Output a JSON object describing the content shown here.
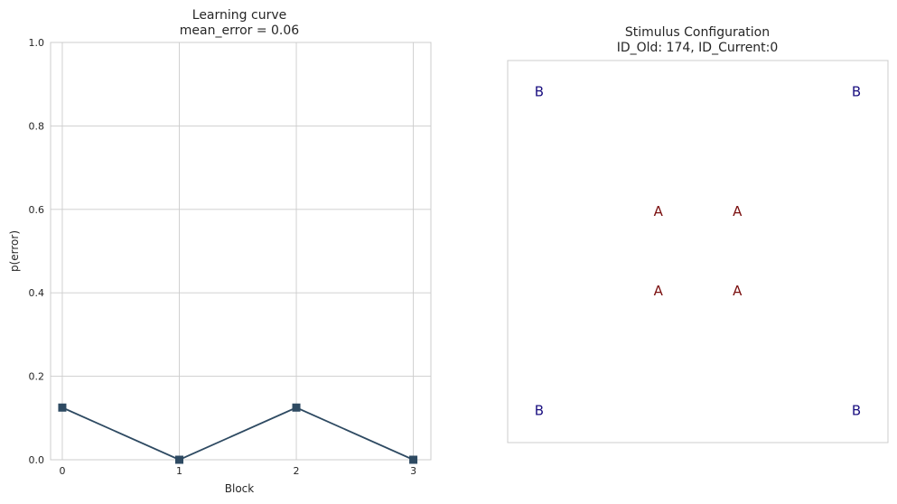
{
  "chart_data": [
    {
      "type": "line",
      "title_line1": "Learning curve",
      "title_line2": "mean_error = 0.06",
      "xlabel": "Block",
      "ylabel": "p(error)",
      "x": [
        0,
        1,
        2,
        3
      ],
      "values": [
        0.125,
        0.0,
        0.125,
        0.0
      ],
      "xticks": [
        "0",
        "1",
        "2",
        "3"
      ],
      "yticks": [
        "0.0",
        "0.2",
        "0.4",
        "0.6",
        "0.8",
        "1.0"
      ],
      "xlim": [
        -0.1,
        3.15
      ],
      "ylim": [
        0,
        1
      ],
      "grid": true,
      "marker": "square",
      "color": "#2e4a62"
    },
    {
      "type": "scatter",
      "title_line1": "Stimulus Configuration",
      "title_line2": "ID_Old: 174, ID_Current:0",
      "xlim": [
        0,
        1
      ],
      "ylim": [
        0,
        1
      ],
      "points": [
        {
          "label": "B",
          "x": 0.083,
          "y": 0.917,
          "color": "#1a0f80"
        },
        {
          "label": "B",
          "x": 0.917,
          "y": 0.917,
          "color": "#1a0f80"
        },
        {
          "label": "A",
          "x": 0.396,
          "y": 0.604,
          "color": "#7a0f0f"
        },
        {
          "label": "A",
          "x": 0.604,
          "y": 0.604,
          "color": "#7a0f0f"
        },
        {
          "label": "A",
          "x": 0.396,
          "y": 0.396,
          "color": "#7a0f0f"
        },
        {
          "label": "A",
          "x": 0.604,
          "y": 0.396,
          "color": "#7a0f0f"
        },
        {
          "label": "B",
          "x": 0.083,
          "y": 0.083,
          "color": "#1a0f80"
        },
        {
          "label": "B",
          "x": 0.917,
          "y": 0.083,
          "color": "#1a0f80"
        }
      ]
    }
  ]
}
